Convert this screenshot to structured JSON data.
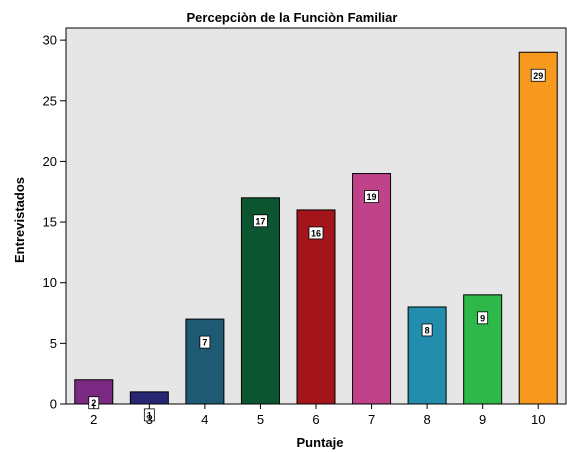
{
  "chart_data": {
    "type": "bar",
    "title": "Percepciòn de la Funciòn Familiar",
    "xlabel": "Puntaje",
    "ylabel": "Entrevistados",
    "categories": [
      "2",
      "3",
      "4",
      "5",
      "6",
      "7",
      "8",
      "9",
      "10"
    ],
    "values": [
      2,
      1,
      7,
      17,
      16,
      19,
      8,
      9,
      29
    ],
    "data_labels": [
      "2",
      "1",
      "7",
      "17",
      "16",
      "19",
      "8",
      "9",
      "29"
    ],
    "colors": [
      "#7b2a83",
      "#272673",
      "#1f5a73",
      "#0b5530",
      "#a3151b",
      "#c04389",
      "#238dae",
      "#2fb84a",
      "#f7981f"
    ],
    "ylim": [
      0,
      31
    ],
    "yticks": [
      0,
      5,
      10,
      15,
      20,
      25,
      30
    ],
    "grid": false,
    "legend": "none",
    "plot_background": "#e6e6e6"
  }
}
